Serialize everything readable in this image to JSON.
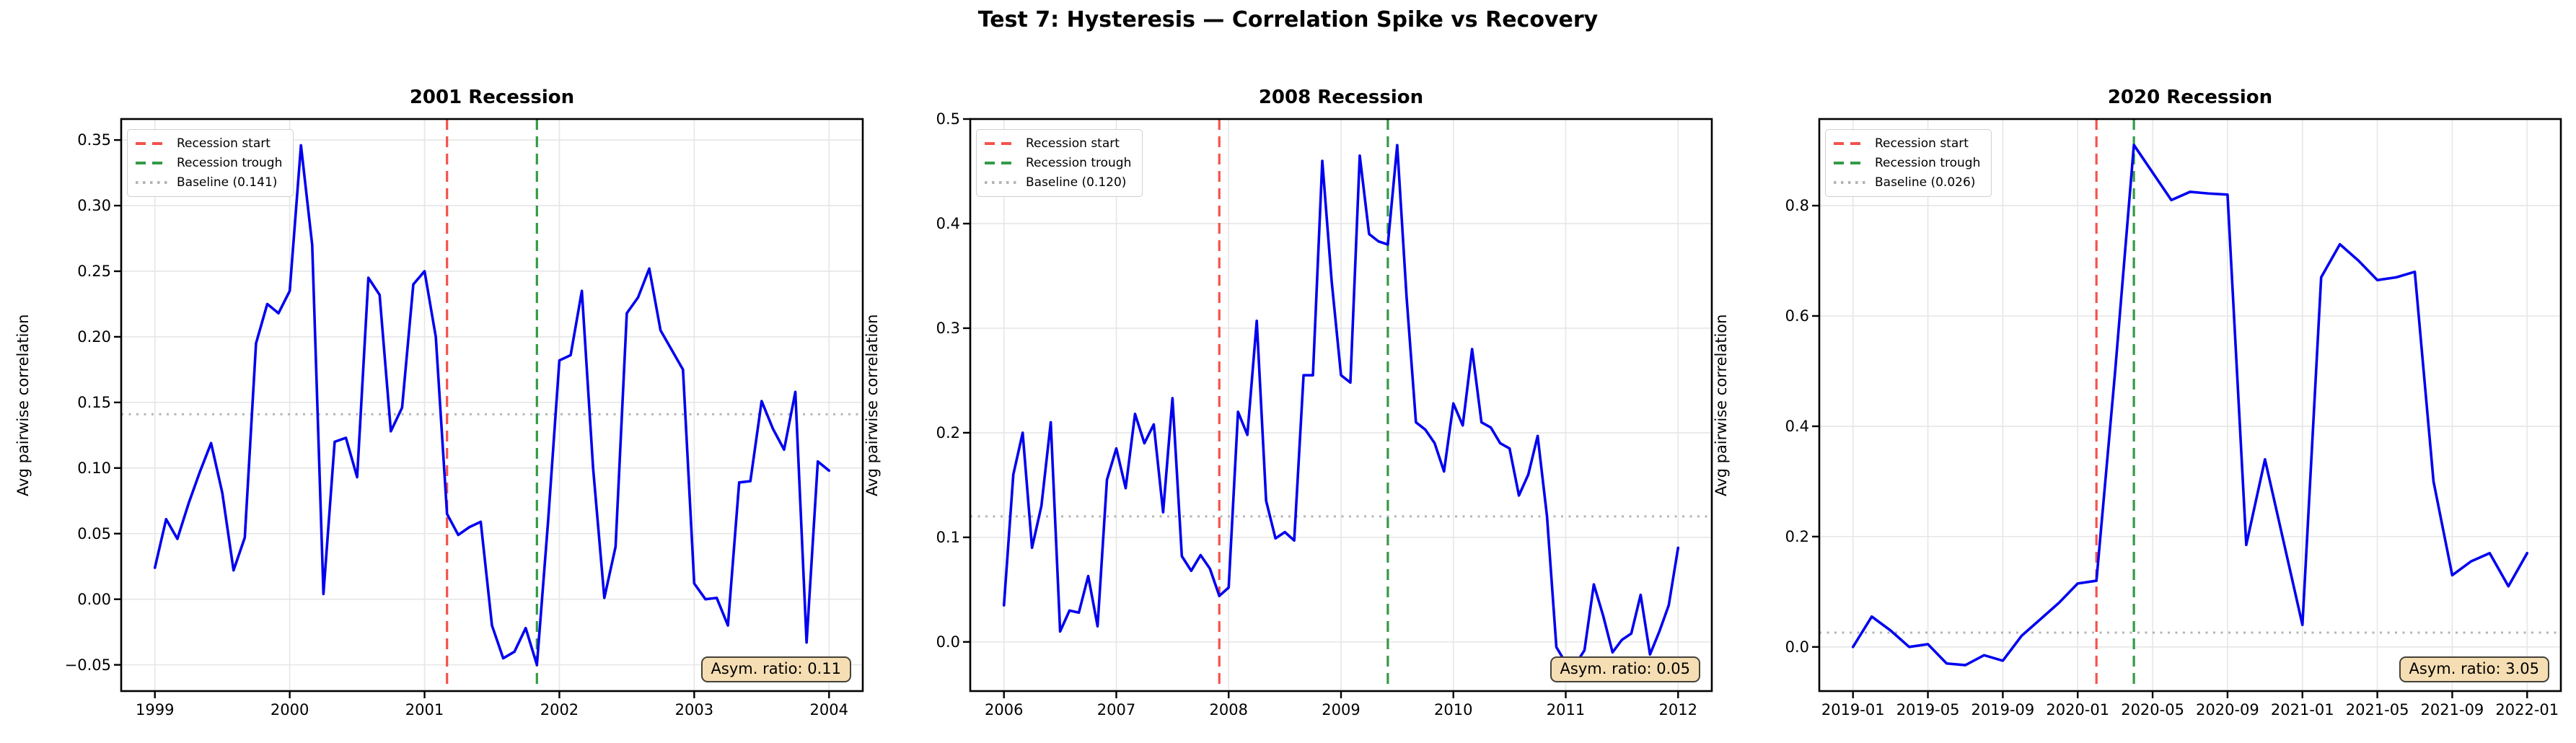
{
  "suptitle": "Test 7: Hysteresis — Correlation Spike vs Recovery",
  "colors": {
    "data_line": "#0000f0",
    "recession_start": "#f4534d",
    "recession_trough": "#349a46",
    "baseline": "#b5b5b5",
    "grid": "#e6e6e6",
    "spine": "#000000",
    "annotation_bg": "#f5deb3",
    "annotation_border": "#46423a"
  },
  "chart_data": [
    {
      "type": "line",
      "title": "2001 Recession",
      "ylabel": "Avg pairwise correlation",
      "xlabel": "",
      "freq": "monthly",
      "x_start": "1999-01",
      "x_end": "2004-01",
      "legend": [
        "Recession start",
        "Recession trough",
        "Baseline (0.141)"
      ],
      "annotation": "Asym. ratio: 0.11",
      "baseline_value": 0.141,
      "recession_start": {
        "index": 26,
        "label": "2001-03"
      },
      "recession_trough": {
        "index": 34,
        "label": "2001-11"
      },
      "xlim": [
        -3,
        63
      ],
      "ylim": [
        -0.07,
        0.366
      ],
      "grid": true,
      "legend_position": "upper left",
      "x_ticks": [
        {
          "index": 0,
          "label": "1999"
        },
        {
          "index": 12,
          "label": "2000"
        },
        {
          "index": 24,
          "label": "2001"
        },
        {
          "index": 36,
          "label": "2002"
        },
        {
          "index": 48,
          "label": "2003"
        },
        {
          "index": 60,
          "label": "2004"
        }
      ],
      "y_ticks": [
        {
          "value": -0.05,
          "label": "−0.05"
        },
        {
          "value": 0.0,
          "label": "0.00"
        },
        {
          "value": 0.05,
          "label": "0.05"
        },
        {
          "value": 0.1,
          "label": "0.10"
        },
        {
          "value": 0.15,
          "label": "0.15"
        },
        {
          "value": 0.2,
          "label": "0.20"
        },
        {
          "value": 0.25,
          "label": "0.25"
        },
        {
          "value": 0.3,
          "label": "0.30"
        },
        {
          "value": 0.35,
          "label": "0.35"
        }
      ],
      "values": [
        0.024,
        0.061,
        0.046,
        0.073,
        0.097,
        0.119,
        0.081,
        0.022,
        0.047,
        0.195,
        0.225,
        0.218,
        0.235,
        0.346,
        0.27,
        0.004,
        0.12,
        0.123,
        0.093,
        0.245,
        0.232,
        0.128,
        0.146,
        0.24,
        0.25,
        0.2,
        0.065,
        0.049,
        0.055,
        0.059,
        -0.02,
        -0.045,
        -0.04,
        -0.022,
        -0.05,
        0.06,
        0.182,
        0.186,
        0.235,
        0.1,
        0.001,
        0.04,
        0.218,
        0.23,
        0.252,
        0.205,
        0.19,
        0.175,
        0.012,
        0.0,
        0.001,
        -0.02,
        0.089,
        0.09,
        0.151,
        0.13,
        0.114,
        0.158,
        -0.033,
        0.105,
        0.098
      ]
    },
    {
      "type": "line",
      "title": "2008 Recession",
      "ylabel": "Avg pairwise correlation",
      "xlabel": "",
      "freq": "monthly",
      "x_start": "2006-01",
      "x_end": "2012-01",
      "legend": [
        "Recession start",
        "Recession trough",
        "Baseline (0.120)"
      ],
      "annotation": "Asym. ratio: 0.05",
      "baseline_value": 0.12,
      "recession_start": {
        "index": 23,
        "label": "2007-12"
      },
      "recession_trough": {
        "index": 41,
        "label": "2009-06"
      },
      "xlim": [
        -3.6,
        75.6
      ],
      "ylim": [
        -0.047,
        0.5
      ],
      "grid": true,
      "legend_position": "upper left",
      "x_ticks": [
        {
          "index": 0,
          "label": "2006"
        },
        {
          "index": 12,
          "label": "2007"
        },
        {
          "index": 24,
          "label": "2008"
        },
        {
          "index": 36,
          "label": "2009"
        },
        {
          "index": 48,
          "label": "2010"
        },
        {
          "index": 60,
          "label": "2011"
        },
        {
          "index": 72,
          "label": "2012"
        }
      ],
      "y_ticks": [
        {
          "value": 0.0,
          "label": "0.0"
        },
        {
          "value": 0.1,
          "label": "0.1"
        },
        {
          "value": 0.2,
          "label": "0.2"
        },
        {
          "value": 0.3,
          "label": "0.3"
        },
        {
          "value": 0.4,
          "label": "0.4"
        },
        {
          "value": 0.5,
          "label": "0.5"
        }
      ],
      "values": [
        0.035,
        0.16,
        0.2,
        0.09,
        0.13,
        0.21,
        0.01,
        0.03,
        0.028,
        0.063,
        0.015,
        0.155,
        0.185,
        0.147,
        0.218,
        0.19,
        0.208,
        0.124,
        0.233,
        0.082,
        0.068,
        0.083,
        0.07,
        0.044,
        0.052,
        0.22,
        0.198,
        0.307,
        0.135,
        0.099,
        0.105,
        0.097,
        0.255,
        0.255,
        0.46,
        0.345,
        0.255,
        0.248,
        0.465,
        0.39,
        0.383,
        0.38,
        0.475,
        0.33,
        0.21,
        0.203,
        0.19,
        0.163,
        0.228,
        0.207,
        0.28,
        0.21,
        0.205,
        0.19,
        0.185,
        0.14,
        0.16,
        0.197,
        0.12,
        -0.005,
        -0.02,
        -0.022,
        -0.008,
        0.055,
        0.025,
        -0.01,
        0.002,
        0.008,
        0.045,
        -0.012,
        0.01,
        0.035,
        0.09
      ]
    },
    {
      "type": "line",
      "title": "2020 Recession",
      "ylabel": "Avg pairwise correlation",
      "xlabel": "",
      "freq": "monthly",
      "x_start": "2019-01",
      "x_end": "2022-01",
      "legend": [
        "Recession start",
        "Recession trough",
        "Baseline (0.026)"
      ],
      "annotation": "Asym. ratio: 3.05",
      "baseline_value": 0.026,
      "recession_start": {
        "index": 13,
        "label": "2020-02"
      },
      "recession_trough": {
        "index": 15,
        "label": "2020-04"
      },
      "xlim": [
        -1.8,
        37.8
      ],
      "ylim": [
        -0.08,
        0.957
      ],
      "grid": true,
      "legend_position": "upper left",
      "x_ticks": [
        {
          "index": 0,
          "label": "2019-01"
        },
        {
          "index": 4,
          "label": "2019-05"
        },
        {
          "index": 8,
          "label": "2019-09"
        },
        {
          "index": 12,
          "label": "2020-01"
        },
        {
          "index": 16,
          "label": "2020-05"
        },
        {
          "index": 20,
          "label": "2020-09"
        },
        {
          "index": 24,
          "label": "2021-01"
        },
        {
          "index": 28,
          "label": "2021-05"
        },
        {
          "index": 32,
          "label": "2021-09"
        },
        {
          "index": 36,
          "label": "2022-01"
        }
      ],
      "y_ticks": [
        {
          "value": 0.0,
          "label": "0.0"
        },
        {
          "value": 0.2,
          "label": "0.2"
        },
        {
          "value": 0.4,
          "label": "0.4"
        },
        {
          "value": 0.6,
          "label": "0.6"
        },
        {
          "value": 0.8,
          "label": "0.8"
        }
      ],
      "values": [
        0.0,
        0.055,
        0.03,
        0.0,
        0.005,
        -0.03,
        -0.033,
        -0.015,
        -0.025,
        0.02,
        0.05,
        0.08,
        0.115,
        0.12,
        0.5,
        0.91,
        0.86,
        0.81,
        0.825,
        0.822,
        0.82,
        0.185,
        0.34,
        0.19,
        0.04,
        0.67,
        0.73,
        0.7,
        0.665,
        0.67,
        0.68,
        0.3,
        0.13,
        0.155,
        0.17,
        0.11,
        0.17
      ]
    }
  ]
}
